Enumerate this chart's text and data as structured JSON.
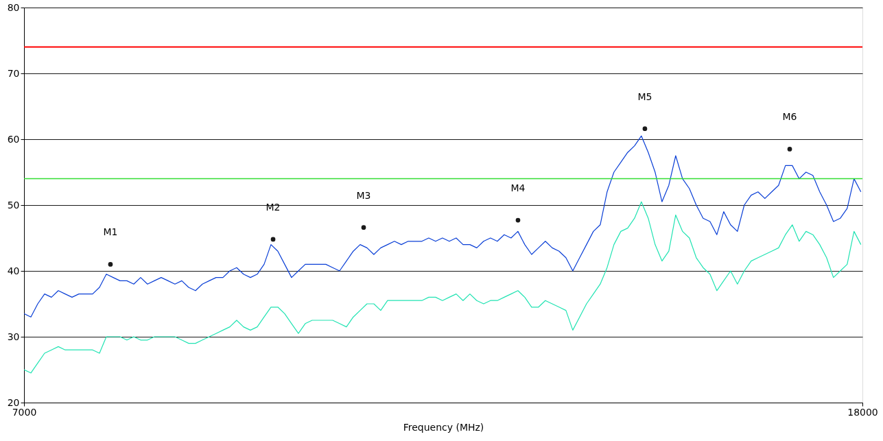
{
  "chart_data": {
    "type": "line",
    "xlabel": "Frequency (MHz)",
    "xlim": [
      7000,
      18000
    ],
    "xticks": [
      7000,
      18000
    ],
    "ylim": [
      20,
      80
    ],
    "yticks": [
      20,
      30,
      40,
      50,
      60,
      70,
      80
    ],
    "grid": "y",
    "line_style": "solid",
    "marker": "none",
    "x": [
      7000,
      7090,
      7180,
      7270,
      7360,
      7450,
      7540,
      7630,
      7720,
      7810,
      7900,
      7990,
      8080,
      8170,
      8260,
      8350,
      8440,
      8530,
      8620,
      8710,
      8800,
      8890,
      8980,
      9070,
      9160,
      9250,
      9340,
      9430,
      9520,
      9610,
      9700,
      9790,
      9880,
      9970,
      10060,
      10150,
      10240,
      10330,
      10420,
      10510,
      10600,
      10690,
      10780,
      10870,
      10960,
      11050,
      11140,
      11230,
      11320,
      11410,
      11500,
      11590,
      11680,
      11770,
      11860,
      11950,
      12040,
      12130,
      12220,
      12310,
      12400,
      12490,
      12580,
      12670,
      12760,
      12850,
      12940,
      13030,
      13120,
      13210,
      13300,
      13390,
      13480,
      13570,
      13660,
      13750,
      13840,
      13930,
      14020,
      14110,
      14200,
      14290,
      14380,
      14470,
      14560,
      14650,
      14740,
      14830,
      14920,
      15010,
      15100,
      15190,
      15280,
      15370,
      15460,
      15550,
      15640,
      15730,
      15820,
      15910,
      16000,
      16090,
      16180,
      16270,
      16360,
      16450,
      16540,
      16630,
      16720,
      16810,
      16900,
      16990,
      17080,
      17170,
      17260,
      17350,
      17440,
      17530,
      17620,
      17710,
      17800,
      17890,
      17980
    ],
    "series": [
      {
        "color": "#0a3fd6",
        "values": [
          33.5,
          33,
          35,
          36.5,
          36,
          37,
          36.5,
          36,
          36.5,
          36.5,
          36.5,
          37.5,
          39.5,
          39,
          38.5,
          38.5,
          38,
          39,
          38,
          38.5,
          39,
          38.5,
          38,
          38.5,
          37.5,
          37,
          38,
          38.5,
          39,
          39,
          40,
          40.5,
          39.5,
          39,
          39.5,
          41,
          44,
          43,
          41,
          39,
          40,
          41,
          41,
          41,
          41,
          40.5,
          40,
          41.5,
          43,
          44,
          43.5,
          42.5,
          43.5,
          44,
          44.5,
          44,
          44.5,
          44.5,
          44.5,
          45,
          44.5,
          45,
          44.5,
          45,
          44,
          44,
          43.5,
          44.5,
          45,
          44.5,
          45.5,
          45,
          46,
          44,
          42.5,
          43.5,
          44.5,
          43.5,
          43,
          42,
          40,
          42,
          44,
          46,
          47,
          52,
          55,
          56.5,
          58,
          59,
          60.5,
          58,
          55,
          50.5,
          53,
          57.5,
          54,
          52.5,
          50,
          48,
          47.5,
          45.5,
          49,
          47,
          46,
          50,
          51.5,
          52,
          51,
          52,
          53,
          56,
          56,
          54,
          55,
          54.5,
          52,
          50,
          47.5,
          48,
          49.5,
          54,
          52
        ]
      },
      {
        "color": "#20e3b2",
        "values": [
          25,
          24.5,
          26,
          27.5,
          28,
          28.5,
          28,
          28,
          28,
          28,
          28,
          27.5,
          30,
          30,
          30,
          29.5,
          30,
          29.5,
          29.5,
          30,
          30,
          30,
          30,
          29.5,
          29,
          29,
          29.5,
          30,
          30.5,
          31,
          31.5,
          32.5,
          31.5,
          31,
          31.5,
          33,
          34.5,
          34.5,
          33.5,
          32,
          30.5,
          32,
          32.5,
          32.5,
          32.5,
          32.5,
          32,
          31.5,
          33,
          34,
          35,
          35,
          34,
          35.5,
          35.5,
          35.5,
          35.5,
          35.5,
          35.5,
          36,
          36,
          35.5,
          36,
          36.5,
          35.5,
          36.5,
          35.5,
          35,
          35.5,
          35.5,
          36,
          36.5,
          37,
          36,
          34.5,
          34.5,
          35.5,
          35,
          34.5,
          34,
          31,
          33,
          35,
          36.5,
          38,
          40.5,
          44,
          46,
          46.5,
          48,
          50.5,
          48,
          44,
          41.5,
          43,
          48.5,
          46,
          45,
          42,
          40.5,
          39.5,
          37,
          38.5,
          40,
          38,
          40,
          41.5,
          42,
          42.5,
          43,
          43.5,
          45.5,
          47,
          44.5,
          46,
          45.5,
          44,
          42,
          39,
          40,
          41,
          46,
          44
        ]
      },
      {
        "type": "scatter",
        "marker": "circle",
        "color": "#1a1a1a",
        "x": [
          8134,
          10268,
          11456,
          13481,
          15146,
          17046
        ],
        "values": [
          41.0,
          44.8,
          46.6,
          47.7,
          61.6,
          58.5
        ]
      }
    ],
    "ref_lines": [
      {
        "axis": "y",
        "value": 74,
        "color": "#ff0000"
      },
      {
        "axis": "y",
        "value": 54,
        "color": "#33dd33"
      }
    ],
    "annotations": [
      {
        "text": "M1",
        "x": 8134,
        "y": 41.0
      },
      {
        "text": "M2",
        "x": 10268,
        "y": 44.8
      },
      {
        "text": "M3",
        "x": 11456,
        "y": 46.6
      },
      {
        "text": "M4",
        "x": 13481,
        "y": 47.7
      },
      {
        "text": "M5",
        "x": 15146,
        "y": 61.6
      },
      {
        "text": "M6",
        "x": 17046,
        "y": 58.5
      }
    ]
  }
}
